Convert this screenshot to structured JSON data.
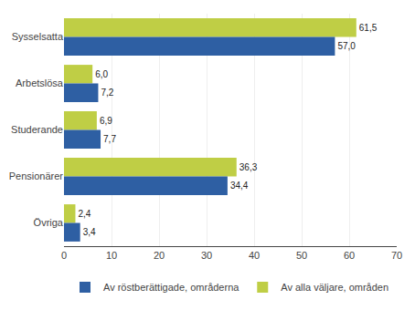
{
  "chart_data": {
    "type": "bar",
    "orientation": "horizontal",
    "categories": [
      "Sysselsatta",
      "Arbetslösa",
      "Studerande",
      "Pensionärer",
      "Övriga"
    ],
    "series": [
      {
        "name": "Av röstberättigade, områderna",
        "color": "#2E5FA3",
        "values": [
          57.0,
          7.2,
          7.7,
          34.4,
          3.4
        ],
        "value_labels": [
          "57,0",
          "7,2",
          "7,7",
          "34,4",
          "3,4"
        ]
      },
      {
        "name": "Av alla väljare, områden",
        "color": "#BFCE45",
        "values": [
          61.5,
          6.0,
          6.9,
          36.3,
          2.4
        ],
        "value_labels": [
          "61,5",
          "6,0",
          "6,9",
          "36,3",
          "2,4"
        ]
      }
    ],
    "xlim": [
      0,
      70
    ],
    "xticks": [
      0,
      10,
      20,
      30,
      40,
      50,
      60,
      70
    ],
    "grid": true,
    "data_labels": true,
    "legend": "bottom"
  }
}
